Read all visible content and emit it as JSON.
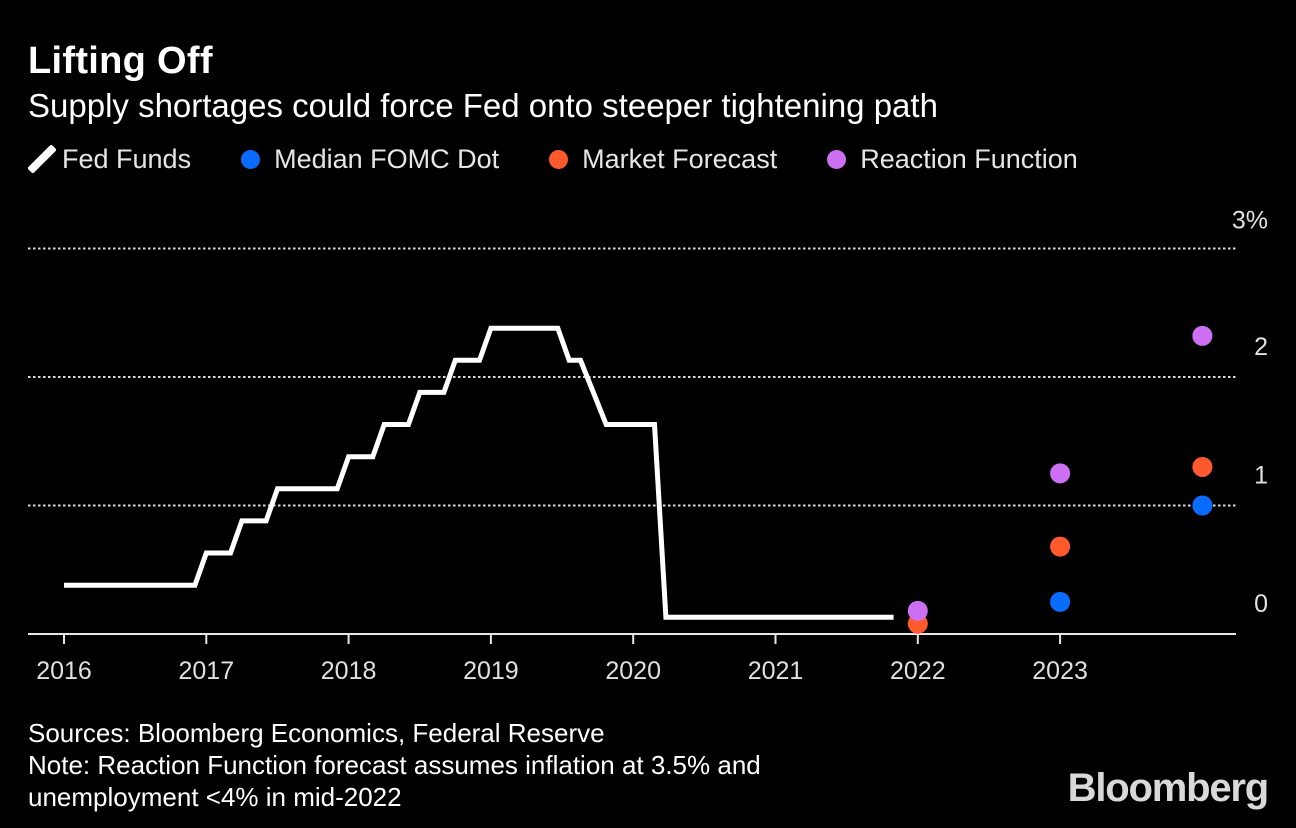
{
  "header": {
    "title": "Lifting Off",
    "subtitle": "Supply shortages could force Fed onto steeper tightening path"
  },
  "legend": {
    "fed_funds": "Fed Funds",
    "median_fomc": "Median FOMC Dot",
    "market_forecast": "Market Forecast",
    "reaction_function": "Reaction Function"
  },
  "colors": {
    "background": "#000000",
    "fed_funds": "#ffffff",
    "median_fomc": "#0a6cff",
    "market_forecast": "#ff5a2d",
    "reaction_function": "#cc6ff2",
    "grid": "#d9d9d9"
  },
  "chart_data": {
    "type": "line",
    "title": "Lifting Off",
    "subtitle": "Supply shortages could force Fed onto steeper tightening path",
    "xlabel": "",
    "ylabel": "",
    "xlim": [
      2016,
      2024.0
    ],
    "ylim": [
      0,
      3
    ],
    "x_ticks": [
      {
        "value": 2016,
        "label": "2016"
      },
      {
        "value": 2017,
        "label": "2017"
      },
      {
        "value": 2018,
        "label": "2018"
      },
      {
        "value": 2019,
        "label": "2019"
      },
      {
        "value": 2020,
        "label": "2020"
      },
      {
        "value": 2021,
        "label": "2021"
      },
      {
        "value": 2022,
        "label": "2022"
      },
      {
        "value": 2023,
        "label": "2023"
      }
    ],
    "y_ticks": [
      {
        "value": 0,
        "label": "0"
      },
      {
        "value": 1,
        "label": "1"
      },
      {
        "value": 2,
        "label": "2"
      },
      {
        "value": 3,
        "label": "3%"
      }
    ],
    "grid": "dotted horizontal at 1, 2, 3",
    "series": [
      {
        "name": "Fed Funds",
        "kind": "step-line",
        "points": [
          [
            2016.0,
            0.38
          ],
          [
            2016.92,
            0.38
          ],
          [
            2017.0,
            0.63
          ],
          [
            2017.17,
            0.63
          ],
          [
            2017.25,
            0.88
          ],
          [
            2017.42,
            0.88
          ],
          [
            2017.5,
            1.13
          ],
          [
            2017.92,
            1.13
          ],
          [
            2018.0,
            1.38
          ],
          [
            2018.17,
            1.38
          ],
          [
            2018.25,
            1.63
          ],
          [
            2018.42,
            1.63
          ],
          [
            2018.5,
            1.88
          ],
          [
            2018.67,
            1.88
          ],
          [
            2018.75,
            2.13
          ],
          [
            2018.92,
            2.13
          ],
          [
            2019.0,
            2.38
          ],
          [
            2019.47,
            2.38
          ],
          [
            2019.55,
            2.13
          ],
          [
            2019.63,
            2.13
          ],
          [
            2019.81,
            1.63
          ],
          [
            2020.15,
            1.63
          ],
          [
            2020.23,
            0.13
          ],
          [
            2021.83,
            0.13
          ]
        ]
      },
      {
        "name": "Median FOMC Dot",
        "kind": "dots",
        "points": [
          [
            2023.0,
            0.25
          ],
          [
            2024.0,
            1.0
          ]
        ]
      },
      {
        "name": "Market Forecast",
        "kind": "dots",
        "points": [
          [
            2022.0,
            0.08
          ],
          [
            2023.0,
            0.68
          ],
          [
            2024.0,
            1.3
          ]
        ]
      },
      {
        "name": "Reaction Function",
        "kind": "dots",
        "points": [
          [
            2022.0,
            0.18
          ],
          [
            2023.0,
            1.25
          ],
          [
            2024.0,
            2.32
          ]
        ]
      }
    ]
  },
  "footer": {
    "sources": "Sources: Bloomberg Economics, Federal Reserve",
    "note_line1": "Note: Reaction Function forecast assumes inflation at 3.5% and",
    "note_line2": "unemployment <4% in mid-2022"
  },
  "brand": {
    "logo": "Bloomberg"
  }
}
